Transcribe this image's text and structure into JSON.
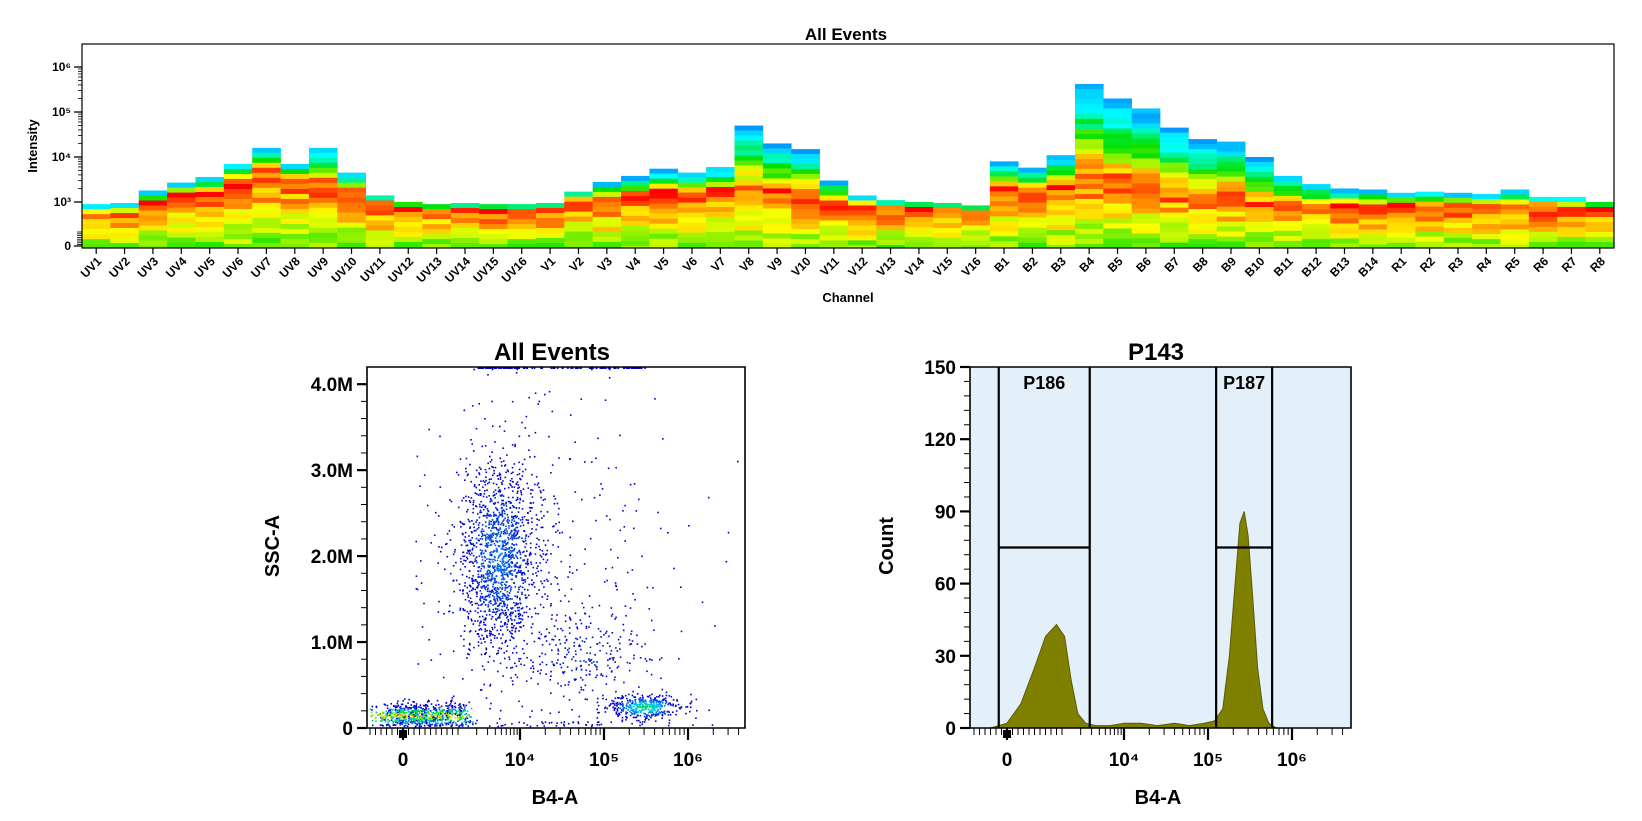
{
  "chart_data": [
    {
      "id": "spectrum",
      "type": "heatmap",
      "title": "All Events",
      "xlabel": "Channel",
      "ylabel": "Intensity",
      "yscale": "log",
      "ytick_labels": [
        "0",
        "10³",
        "10⁴",
        "10⁵",
        "10⁶"
      ],
      "categories": [
        "UV1",
        "UV2",
        "UV3",
        "UV4",
        "UV5",
        "UV6",
        "UV7",
        "UV8",
        "UV9",
        "UV10",
        "UV11",
        "UV12",
        "UV13",
        "UV14",
        "UV15",
        "UV16",
        "V1",
        "V2",
        "V3",
        "V4",
        "V5",
        "V6",
        "V7",
        "V8",
        "V9",
        "V10",
        "V11",
        "V12",
        "V13",
        "V14",
        "V15",
        "V16",
        "B1",
        "B2",
        "B3",
        "B4",
        "B5",
        "B6",
        "B7",
        "B8",
        "B9",
        "B10",
        "B11",
        "B12",
        "B13",
        "B14",
        "R1",
        "R2",
        "R3",
        "R4",
        "R5",
        "R6",
        "R7",
        "R8"
      ],
      "max_intensity": [
        800,
        900,
        1800,
        2700,
        3600,
        7000,
        16000,
        7000,
        16000,
        4500,
        1400,
        1000,
        800,
        900,
        800,
        800,
        900,
        1700,
        2800,
        3800,
        5500,
        4500,
        6000,
        50000,
        20000,
        15000,
        3000,
        1400,
        1100,
        1000,
        900,
        700,
        8000,
        5800,
        11000,
        420000,
        200000,
        120000,
        45000,
        25000,
        22000,
        10000,
        3800,
        2500,
        2000,
        1900,
        1600,
        1700,
        1600,
        1500,
        1900,
        1300,
        1300,
        1000
      ],
      "peak_density_intensity": [
        300,
        350,
        1000,
        1500,
        1800,
        3000,
        5500,
        3600,
        3200,
        1800,
        900,
        600,
        450,
        500,
        450,
        450,
        500,
        1100,
        1300,
        1500,
        1800,
        1700,
        2000,
        2200,
        1800,
        1700,
        1100,
        700,
        600,
        550,
        500,
        400,
        2500,
        1900,
        2300,
        4500,
        3500,
        2800,
        2200,
        1600,
        1700,
        1000,
        900,
        800,
        700,
        700,
        800,
        800,
        700,
        700,
        800,
        700,
        650,
        550
      ],
      "colormap": [
        "#ff0000",
        "#ffff00",
        "#00e000",
        "#00ffff",
        "#0099ff"
      ]
    },
    {
      "id": "dotplot",
      "type": "scatter",
      "title": "All Events",
      "xlabel": "B4-A",
      "ylabel": "SSC-A",
      "xscale": "biexponential",
      "xtick_labels": [
        "0",
        "10⁴",
        "10⁵",
        "10⁶"
      ],
      "ytick_labels": [
        "0",
        "1.0M",
        "2.0M",
        "3.0M",
        "4.0M"
      ],
      "ylim": [
        0,
        4200000
      ],
      "populations": [
        {
          "name": "",
          "x_center": 300,
          "y_center": 150000,
          "spread": "dense, red core"
        },
        {
          "name": "",
          "x_center": 4500,
          "y_center": 2000000,
          "spread": "elongated vertical"
        },
        {
          "name": "",
          "x_center": 60000,
          "y_center": 850000,
          "spread": "sparse"
        },
        {
          "name": "",
          "x_center": 300000,
          "y_center": 250000,
          "spread": "dense, cyan core"
        }
      ],
      "colormap": [
        "#0000cc",
        "#00c8ff",
        "#00e000",
        "#ffff00",
        "#ff0000"
      ]
    },
    {
      "id": "histogram",
      "type": "area",
      "title": "P143",
      "xlabel": "B4-A",
      "ylabel": "Count",
      "xscale": "biexponential",
      "xtick_labels": [
        "0",
        "10⁴",
        "10⁵",
        "10⁶"
      ],
      "ytick_labels": [
        "0",
        "30",
        "60",
        "90",
        "120",
        "150"
      ],
      "ylim": [
        0,
        150
      ],
      "x": [
        -600,
        -300,
        0,
        250,
        500,
        700,
        900,
        1100,
        1400,
        1800,
        2400,
        3500,
        6000,
        10000,
        16000,
        25000,
        40000,
        60000,
        90000,
        120000,
        150000,
        180000,
        210000,
        240000,
        270000,
        300000,
        340000,
        390000,
        450000,
        530000,
        650000,
        800000
      ],
      "y": [
        0,
        0,
        2,
        10,
        25,
        38,
        43,
        38,
        20,
        6,
        2,
        1,
        1,
        2,
        2,
        1,
        2,
        1,
        2,
        3,
        8,
        30,
        60,
        85,
        90,
        80,
        55,
        25,
        8,
        2,
        0,
        0
      ],
      "fill_color": "#808000",
      "background": "#e3f0fa",
      "gates": [
        {
          "label": "P186",
          "x_min": -150,
          "x_max": 2800,
          "y_level": 75
        },
        {
          "label": "P187",
          "x_min": 125000,
          "x_max": 580000,
          "y_level": 75
        }
      ]
    }
  ]
}
